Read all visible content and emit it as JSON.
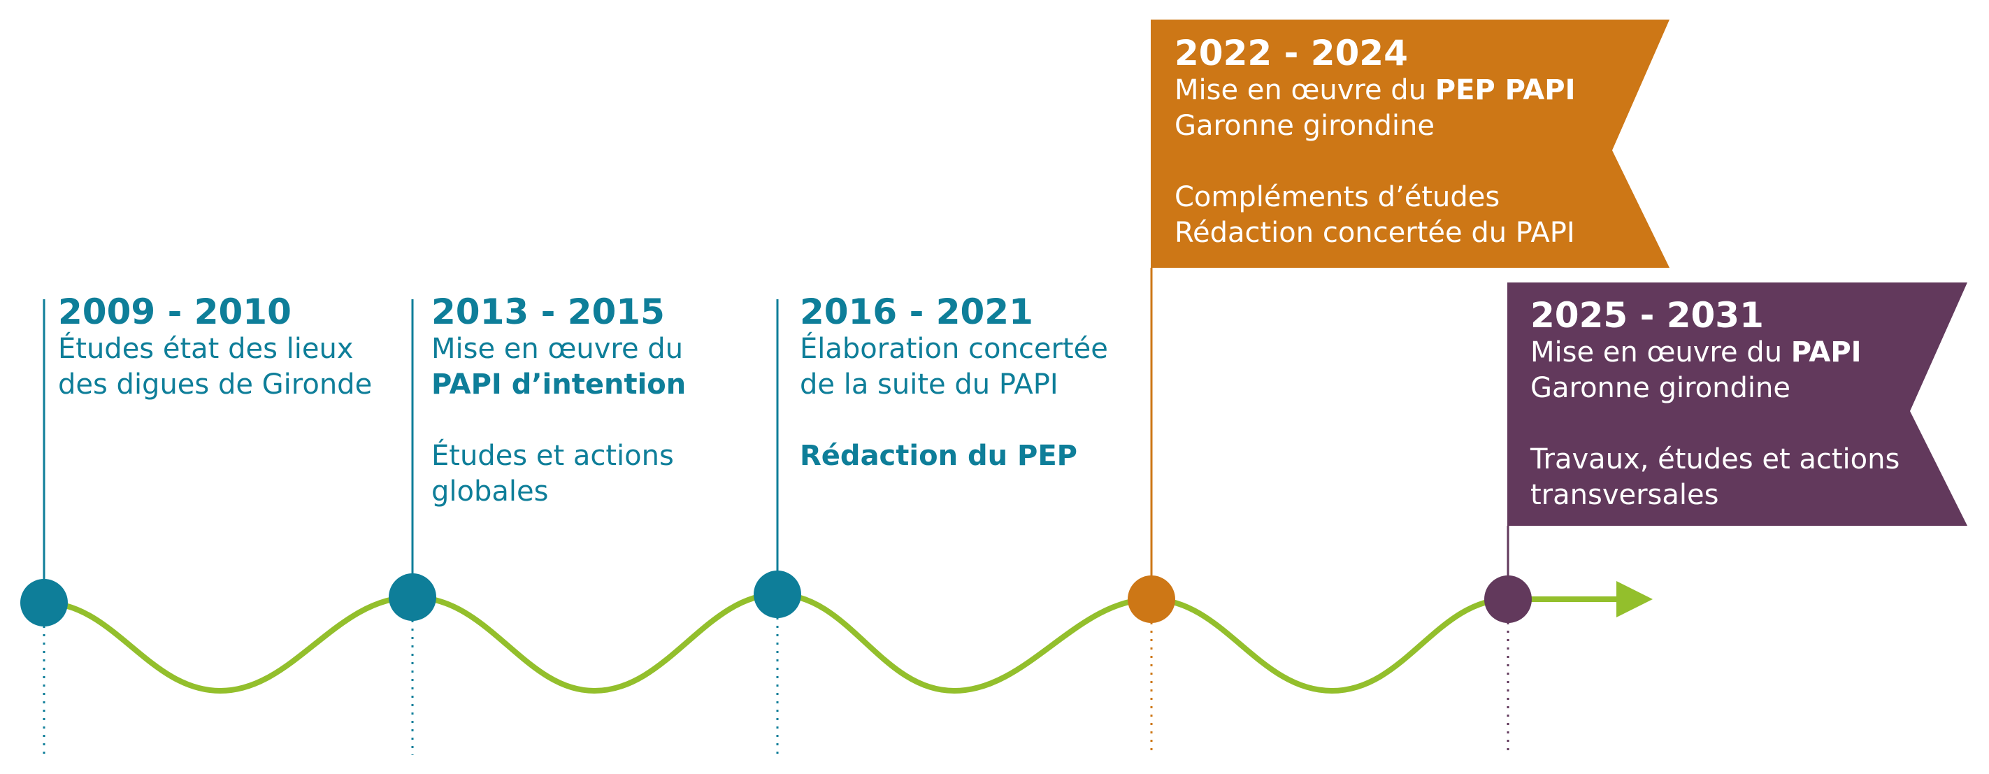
{
  "colors": {
    "teal": "#0e7e99",
    "orange": "#cd7716",
    "purple": "#62395c",
    "green": "#93bf2c",
    "white": "#ffffff"
  },
  "milestones": [
    {
      "years": "2009 - 2010",
      "line1": "Études état des lieux",
      "line2": "des digues de Gironde"
    },
    {
      "years": "2013 - 2015",
      "line1": "Mise en œuvre du",
      "line2_bold": "PAPI d’intention",
      "line3": "Études et actions",
      "line4": "globales"
    },
    {
      "years": "2016 - 2021",
      "line1": "Élaboration concertée",
      "line2": "de la suite du PAPI",
      "line3_bold": "Rédaction du PEP"
    },
    {
      "years": "2022 - 2024",
      "line1_prefix": "Mise en œuvre du ",
      "line1_bold": "PEP PAPI",
      "line2": "Garonne girondine",
      "line3": "Compléments d’études",
      "line4": "Rédaction concertée du PAPI"
    },
    {
      "years": "2025 - 2031",
      "line1_prefix": "Mise en œuvre du ",
      "line1_bold": "PAPI",
      "line2": "Garonne girondine",
      "line3": "Travaux, études et actions",
      "line4": "transversales"
    }
  ]
}
